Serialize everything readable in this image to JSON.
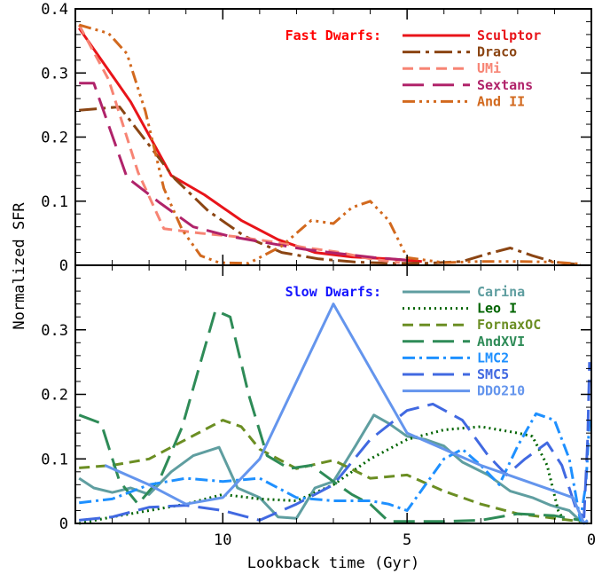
{
  "chart_data": {
    "type": "line",
    "xlabel": "Lookback time (Gyr)",
    "ylabel": "Normalized SFR",
    "x_direction": "reversed",
    "xlim": [
      14.0,
      0.0
    ],
    "x_ticks": [
      10,
      5,
      0
    ],
    "panels": [
      {
        "id": "fast",
        "group_title": "Fast Dwarfs:",
        "group_title_color": "#ff0000",
        "ylim": [
          0,
          0.4
        ],
        "y_ticks": [
          0,
          0.1,
          0.2,
          0.3,
          0.4
        ],
        "y_tick_labels": [
          "0",
          "0.1",
          "0.2",
          "0.3",
          "0.4"
        ],
        "series": [
          {
            "name": "Sculptor",
            "color": "#e8141a",
            "dash": "solid",
            "x": [
              13.9,
              12.5,
              11.4,
              10.5,
              9.5,
              8.5,
              7.5,
              6.5,
              5.5,
              4.6
            ],
            "y": [
              0.37,
              0.255,
              0.14,
              0.11,
              0.07,
              0.04,
              0.02,
              0.013,
              0.01,
              0.006
            ]
          },
          {
            "name": "Draco",
            "color": "#8b4513",
            "dash": "longdashdot",
            "x": [
              13.9,
              12.8,
              12.1,
              11.3,
              10.4,
              9.4,
              8.4,
              7.4,
              6.4,
              5.4,
              4.5,
              3.5,
              2.8,
              2.2,
              1.6,
              1.0,
              0.3
            ],
            "y": [
              0.242,
              0.247,
              0.195,
              0.135,
              0.085,
              0.045,
              0.02,
              0.01,
              0.005,
              0.003,
              0.003,
              0.006,
              0.018,
              0.027,
              0.015,
              0.005,
              0.001
            ]
          },
          {
            "name": "UMi",
            "color": "#f78474",
            "dash": "shortdash",
            "x": [
              13.9,
              13.1,
              12.3,
              11.6,
              10.6,
              9.7,
              8.7,
              7.8,
              6.8,
              6.0,
              5.2
            ],
            "y": [
              0.375,
              0.29,
              0.145,
              0.057,
              0.05,
              0.045,
              0.037,
              0.028,
              0.02,
              0.01,
              0.004
            ]
          },
          {
            "name": "Sextans",
            "color": "#b0236a",
            "dash": "longdash",
            "x": [
              13.9,
              13.5,
              12.6,
              11.7,
              10.8,
              9.8,
              8.8,
              7.8,
              6.8,
              5.9,
              5.0
            ],
            "y": [
              0.284,
              0.284,
              0.137,
              0.097,
              0.06,
              0.045,
              0.035,
              0.025,
              0.018,
              0.012,
              0.008
            ]
          },
          {
            "name": "And II",
            "color": "#d2691e",
            "dash": "dashdotdotdot",
            "x": [
              13.9,
              13.1,
              12.6,
              12.1,
              11.6,
              11.1,
              10.6,
              10.1,
              9.3,
              8.4,
              7.6,
              7.0,
              6.5,
              6.0,
              5.5,
              5.0,
              4.0,
              3.0,
              2.0,
              1.0,
              0.3
            ],
            "y": [
              0.375,
              0.362,
              0.33,
              0.24,
              0.12,
              0.055,
              0.015,
              0.004,
              0.003,
              0.03,
              0.07,
              0.065,
              0.09,
              0.1,
              0.07,
              0.012,
              0.004,
              0.006,
              0.006,
              0.005,
              0.002
            ]
          }
        ]
      },
      {
        "id": "slow",
        "group_title": "Slow Dwarfs:",
        "group_title_color": "#1414ff",
        "ylim": [
          0,
          0.4
        ],
        "y_ticks": [
          0,
          0.1,
          0.2,
          0.3
        ],
        "y_tick_labels": [
          "0",
          "0.1",
          "0.2",
          "0.3"
        ],
        "series": [
          {
            "name": "Carina",
            "color": "#5f9ea0",
            "dash": "solid",
            "x": [
              13.9,
              13.5,
              13.0,
              12.5,
              12.0,
              11.4,
              10.8,
              10.1,
              9.6,
              9.0,
              8.5,
              8.0,
              7.5,
              7.0,
              6.4,
              5.9,
              5.5,
              5.0,
              4.5,
              4.0,
              3.5,
              2.8,
              2.2,
              1.6,
              1.1,
              0.6,
              0.3,
              0.1
            ],
            "y": [
              0.07,
              0.055,
              0.048,
              0.055,
              0.045,
              0.08,
              0.105,
              0.118,
              0.055,
              0.04,
              0.01,
              0.008,
              0.055,
              0.065,
              0.12,
              0.168,
              0.155,
              0.135,
              0.13,
              0.12,
              0.095,
              0.075,
              0.05,
              0.04,
              0.028,
              0.02,
              0.004,
              0.0
            ]
          },
          {
            "name": "Leo I",
            "color": "#006400",
            "dash": "dotted",
            "x": [
              13.9,
              13.0,
              12.0,
              11.0,
              10.0,
              9.0,
              8.0,
              7.0,
              6.0,
              5.0,
              4.0,
              3.0,
              2.0,
              1.6,
              1.2,
              0.9,
              0.7
            ],
            "y": [
              0.0,
              0.01,
              0.02,
              0.03,
              0.045,
              0.038,
              0.035,
              0.06,
              0.1,
              0.13,
              0.145,
              0.15,
              0.14,
              0.135,
              0.09,
              0.02,
              0.0
            ]
          },
          {
            "name": "FornaxOC",
            "color": "#6b8e23",
            "dash": "shortdash",
            "x": [
              13.9,
              13.0,
              12.0,
              11.0,
              10.0,
              9.5,
              9.0,
              8.0,
              7.0,
              6.0,
              5.0,
              4.0,
              3.0,
              2.0,
              1.0,
              0.3
            ],
            "y": [
              0.086,
              0.09,
              0.1,
              0.13,
              0.16,
              0.15,
              0.115,
              0.085,
              0.098,
              0.07,
              0.075,
              0.05,
              0.03,
              0.015,
              0.008,
              0.003
            ]
          },
          {
            "name": "AndXVI",
            "color": "#2e8b57",
            "dash": "longdash",
            "x": [
              13.9,
              13.3,
              12.8,
              12.3,
              11.7,
              11.1,
              10.6,
              10.2,
              9.8,
              9.3,
              8.8,
              8.2,
              7.6,
              7.0,
              6.5,
              6.0,
              5.5,
              5.0,
              4.0,
              3.0,
              2.0,
              1.0,
              0.3
            ],
            "y": [
              0.168,
              0.155,
              0.065,
              0.03,
              0.07,
              0.15,
              0.25,
              0.33,
              0.32,
              0.2,
              0.105,
              0.085,
              0.09,
              0.065,
              0.045,
              0.03,
              0.003,
              0.003,
              0.003,
              0.005,
              0.015,
              0.012,
              0.005
            ]
          },
          {
            "name": "LMC2",
            "color": "#1e90ff",
            "dash": "dashdot",
            "x": [
              13.9,
              13.0,
              12.0,
              11.0,
              10.0,
              9.0,
              8.0,
              7.0,
              6.0,
              5.5,
              5.0,
              4.5,
              4.0,
              3.5,
              3.0,
              2.5,
              2.0,
              1.5,
              1.0,
              0.6,
              0.3,
              0.15,
              0.05
            ],
            "y": [
              0.032,
              0.038,
              0.06,
              0.07,
              0.065,
              0.07,
              0.04,
              0.035,
              0.035,
              0.03,
              0.02,
              0.06,
              0.1,
              0.115,
              0.09,
              0.06,
              0.12,
              0.17,
              0.16,
              0.1,
              0.005,
              0.06,
              0.16
            ]
          },
          {
            "name": "SMC5",
            "color": "#4169e1",
            "dash": "longdash",
            "x": [
              13.9,
              13.0,
              12.0,
              11.0,
              10.0,
              9.0,
              8.0,
              7.0,
              6.0,
              5.0,
              4.3,
              3.5,
              2.8,
              2.3,
              1.8,
              1.2,
              0.8,
              0.4,
              0.2,
              0.1,
              0.05
            ],
            "y": [
              0.005,
              0.01,
              0.025,
              0.028,
              0.02,
              0.005,
              0.03,
              0.06,
              0.13,
              0.175,
              0.185,
              0.16,
              0.105,
              0.075,
              0.1,
              0.125,
              0.09,
              0.02,
              0.01,
              0.13,
              0.25
            ]
          },
          {
            "name": "DDO210",
            "color": "#6495ed",
            "dash": "solid",
            "x": [
              13.2,
              12.0,
              11.0,
              10.0,
              9.0,
              7.0,
              5.0,
              4.0,
              3.0,
              2.0,
              1.0,
              0.5,
              0.2,
              0.1
            ],
            "y": [
              0.09,
              0.06,
              0.03,
              0.04,
              0.1,
              0.34,
              0.14,
              0.115,
              0.09,
              0.07,
              0.05,
              0.04,
              0.0,
              0.005
            ]
          }
        ]
      }
    ]
  }
}
